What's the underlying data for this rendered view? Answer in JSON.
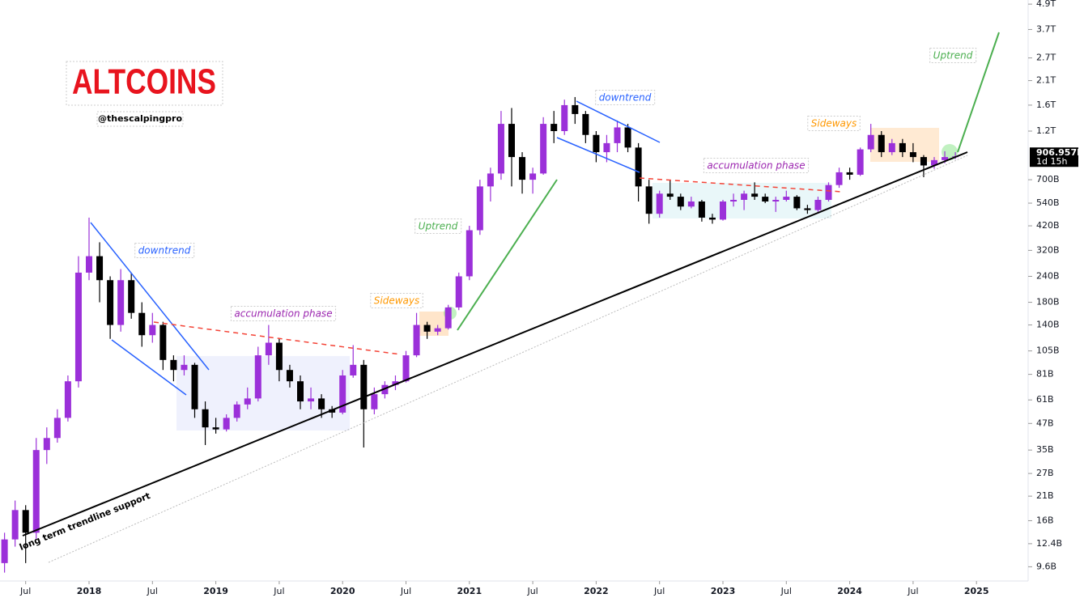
{
  "chart_data": {
    "type": "candlestick",
    "title": "ALTCOINS",
    "subtitle": "@thescalpingpro",
    "log_scale": true,
    "up_color": "#9b30d9",
    "down_color": "#000000",
    "ylim": [
      8.2,
      5130
    ],
    "yticks": [
      {
        "value": 9.6,
        "label": "9.6B"
      },
      {
        "value": 12.4,
        "label": "12.4B"
      },
      {
        "value": 16,
        "label": "16B"
      },
      {
        "value": 21,
        "label": "21B"
      },
      {
        "value": 27,
        "label": "27B"
      },
      {
        "value": 35,
        "label": "35B"
      },
      {
        "value": 47,
        "label": "47B"
      },
      {
        "value": 61,
        "label": "61B"
      },
      {
        "value": 81,
        "label": "81B"
      },
      {
        "value": 105,
        "label": "105B"
      },
      {
        "value": 140,
        "label": "140B"
      },
      {
        "value": 180,
        "label": "180B"
      },
      {
        "value": 240,
        "label": "240B"
      },
      {
        "value": 320,
        "label": "320B"
      },
      {
        "value": 420,
        "label": "420B"
      },
      {
        "value": 540,
        "label": "540B"
      },
      {
        "value": 700,
        "label": "700B"
      },
      {
        "value": 1200,
        "label": "1.2T"
      },
      {
        "value": 1600,
        "label": "1.6T"
      },
      {
        "value": 2100,
        "label": "2.1T"
      },
      {
        "value": 2700,
        "label": "2.7T"
      },
      {
        "value": 3700,
        "label": "3.7T"
      },
      {
        "value": 4900,
        "label": "4.9T"
      }
    ],
    "xticks": [
      {
        "value": "2017-07",
        "label": "Jul"
      },
      {
        "value": "2018-01",
        "label": "2018"
      },
      {
        "value": "2018-07",
        "label": "Jul"
      },
      {
        "value": "2019-01",
        "label": "2019"
      },
      {
        "value": "2019-07",
        "label": "Jul"
      },
      {
        "value": "2020-01",
        "label": "2020"
      },
      {
        "value": "2020-07",
        "label": "Jul"
      },
      {
        "value": "2021-01",
        "label": "2021"
      },
      {
        "value": "2021-07",
        "label": "Jul"
      },
      {
        "value": "2022-01",
        "label": "2022"
      },
      {
        "value": "2022-07",
        "label": "Jul"
      },
      {
        "value": "2023-01",
        "label": "2023"
      },
      {
        "value": "2023-07",
        "label": "Jul"
      },
      {
        "value": "2024-01",
        "label": "2024"
      },
      {
        "value": "2024-07",
        "label": "Jul"
      },
      {
        "value": "2025-01",
        "label": "2025"
      }
    ],
    "last_price": {
      "value": 906.957,
      "label": "906.957B"
    },
    "countdown": "1d 15h",
    "annotations": [
      {
        "text": "downtrend",
        "color": "#2962ff"
      },
      {
        "text": "accumulation phase",
        "color": "#9c27b0"
      },
      {
        "text": "Sideways",
        "color": "#ff9800"
      },
      {
        "text": "Uptrend",
        "color": "#4caf50"
      },
      {
        "text": "downtrend",
        "color": "#2962ff"
      },
      {
        "text": "accumulation phase",
        "color": "#9c27b0"
      },
      {
        "text": "Sideways",
        "color": "#ff9800"
      },
      {
        "text": "Uptrend",
        "color": "#4caf50"
      },
      {
        "text": "long term trendline support",
        "color": "#000000"
      }
    ],
    "x": [
      "2017-05",
      "2017-06",
      "2017-07",
      "2017-08",
      "2017-09",
      "2017-10",
      "2017-11",
      "2017-12",
      "2018-01",
      "2018-02",
      "2018-03",
      "2018-04",
      "2018-05",
      "2018-06",
      "2018-07",
      "2018-08",
      "2018-09",
      "2018-10",
      "2018-11",
      "2018-12",
      "2019-01",
      "2019-02",
      "2019-03",
      "2019-04",
      "2019-05",
      "2019-06",
      "2019-07",
      "2019-08",
      "2019-09",
      "2019-10",
      "2019-11",
      "2019-12",
      "2020-01",
      "2020-02",
      "2020-03",
      "2020-04",
      "2020-05",
      "2020-06",
      "2020-07",
      "2020-08",
      "2020-09",
      "2020-10",
      "2020-11",
      "2020-12",
      "2021-01",
      "2021-02",
      "2021-03",
      "2021-04",
      "2021-05",
      "2021-06",
      "2021-07",
      "2021-08",
      "2021-09",
      "2021-10",
      "2021-11",
      "2021-12",
      "2022-01",
      "2022-02",
      "2022-03",
      "2022-04",
      "2022-05",
      "2022-06",
      "2022-07",
      "2022-08",
      "2022-09",
      "2022-10",
      "2022-11",
      "2022-12",
      "2023-01",
      "2023-02",
      "2023-03",
      "2023-04",
      "2023-05",
      "2023-06",
      "2023-07",
      "2023-08",
      "2023-09",
      "2023-10",
      "2023-11",
      "2023-12",
      "2024-01",
      "2024-02",
      "2024-03",
      "2024-04",
      "2024-05",
      "2024-06",
      "2024-07",
      "2024-08",
      "2024-09",
      "2024-10",
      "2024-11"
    ],
    "ohlc": [
      [
        10,
        14,
        9,
        13
      ],
      [
        13,
        20,
        12,
        18
      ],
      [
        18,
        19,
        10,
        14
      ],
      [
        14,
        40,
        13,
        35
      ],
      [
        35,
        45,
        30,
        40
      ],
      [
        40,
        55,
        38,
        50
      ],
      [
        50,
        80,
        48,
        75
      ],
      [
        75,
        300,
        70,
        250
      ],
      [
        250,
        460,
        230,
        300
      ],
      [
        300,
        350,
        180,
        230
      ],
      [
        230,
        240,
        120,
        140
      ],
      [
        140,
        260,
        130,
        230
      ],
      [
        230,
        250,
        150,
        160
      ],
      [
        160,
        180,
        110,
        125
      ],
      [
        125,
        160,
        115,
        140
      ],
      [
        140,
        145,
        85,
        95
      ],
      [
        95,
        100,
        75,
        85
      ],
      [
        85,
        100,
        80,
        90
      ],
      [
        90,
        92,
        50,
        55
      ],
      [
        55,
        60,
        37,
        45
      ],
      [
        45,
        50,
        42,
        44
      ],
      [
        44,
        52,
        43,
        50
      ],
      [
        50,
        60,
        48,
        58
      ],
      [
        58,
        70,
        55,
        62
      ],
      [
        62,
        110,
        60,
        100
      ],
      [
        100,
        140,
        90,
        115
      ],
      [
        115,
        120,
        75,
        85
      ],
      [
        85,
        90,
        70,
        75
      ],
      [
        75,
        80,
        55,
        60
      ],
      [
        60,
        70,
        55,
        62
      ],
      [
        62,
        65,
        50,
        55
      ],
      [
        55,
        57,
        50,
        53
      ],
      [
        53,
        85,
        52,
        80
      ],
      [
        80,
        112,
        78,
        90
      ],
      [
        90,
        95,
        36,
        55
      ],
      [
        55,
        70,
        52,
        65
      ],
      [
        65,
        75,
        62,
        72
      ],
      [
        72,
        80,
        68,
        75
      ],
      [
        75,
        105,
        74,
        100
      ],
      [
        100,
        160,
        98,
        140
      ],
      [
        140,
        145,
        120,
        130
      ],
      [
        130,
        140,
        125,
        135
      ],
      [
        135,
        175,
        133,
        170
      ],
      [
        170,
        250,
        165,
        240
      ],
      [
        240,
        420,
        230,
        400
      ],
      [
        400,
        700,
        380,
        650
      ],
      [
        650,
        800,
        550,
        750
      ],
      [
        750,
        1500,
        700,
        1300
      ],
      [
        1300,
        1550,
        650,
        900
      ],
      [
        900,
        950,
        600,
        700
      ],
      [
        700,
        800,
        600,
        750
      ],
      [
        750,
        1400,
        740,
        1300
      ],
      [
        1300,
        1500,
        1050,
        1200
      ],
      [
        1200,
        1700,
        1150,
        1600
      ],
      [
        1600,
        1750,
        1300,
        1450
      ],
      [
        1450,
        1500,
        1050,
        1150
      ],
      [
        1150,
        1200,
        850,
        950
      ],
      [
        950,
        1150,
        850,
        1050
      ],
      [
        1050,
        1350,
        950,
        1250
      ],
      [
        1250,
        1300,
        950,
        1000
      ],
      [
        1000,
        1050,
        550,
        650
      ],
      [
        650,
        700,
        430,
        480
      ],
      [
        480,
        620,
        460,
        600
      ],
      [
        600,
        700,
        560,
        580
      ],
      [
        580,
        600,
        500,
        520
      ],
      [
        520,
        580,
        510,
        550
      ],
      [
        550,
        560,
        440,
        460
      ],
      [
        460,
        480,
        430,
        450
      ],
      [
        450,
        560,
        445,
        550
      ],
      [
        550,
        600,
        520,
        560
      ],
      [
        560,
        620,
        500,
        600
      ],
      [
        600,
        680,
        560,
        580
      ],
      [
        580,
        600,
        540,
        550
      ],
      [
        550,
        580,
        490,
        560
      ],
      [
        560,
        620,
        550,
        580
      ],
      [
        580,
        590,
        500,
        510
      ],
      [
        510,
        530,
        480,
        500
      ],
      [
        500,
        580,
        490,
        560
      ],
      [
        560,
        680,
        550,
        660
      ],
      [
        660,
        800,
        640,
        760
      ],
      [
        760,
        800,
        700,
        740
      ],
      [
        740,
        1000,
        730,
        980
      ],
      [
        980,
        1300,
        950,
        1150
      ],
      [
        1150,
        1200,
        900,
        950
      ],
      [
        950,
        1100,
        920,
        1050
      ],
      [
        1050,
        1100,
        900,
        950
      ],
      [
        950,
        1050,
        850,
        900
      ],
      [
        900,
        920,
        720,
        820
      ],
      [
        820,
        900,
        790,
        870
      ],
      [
        870,
        960,
        840,
        900
      ],
      [
        900,
        950,
        880,
        907
      ]
    ]
  }
}
